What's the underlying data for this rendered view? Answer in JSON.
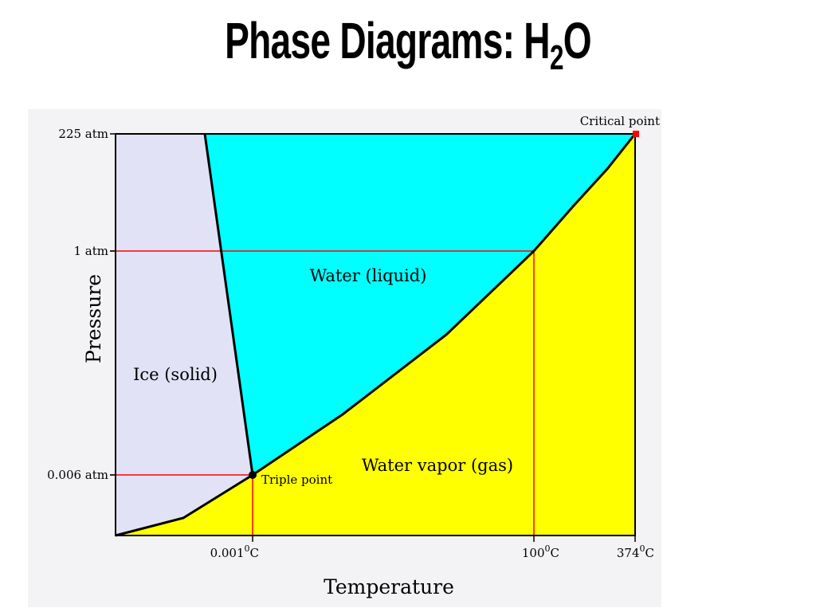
{
  "title": {
    "main": "Phase Diagrams: H",
    "subscript": "2",
    "suffix": "O"
  },
  "axes": {
    "y_label": "Pressure",
    "x_label": "Temperature",
    "y_ticks": [
      "225 atm",
      "1 atm",
      "0.006 atm"
    ],
    "x_ticks": [
      {
        "num": "0.001",
        "deg": "0",
        "unit": "C"
      },
      {
        "num": "100",
        "deg": "0",
        "unit": "C"
      },
      {
        "num": "374",
        "deg": "0",
        "unit": "C"
      }
    ]
  },
  "regions": {
    "solid": "Ice (solid)",
    "liquid": "Water (liquid)",
    "gas": "Water vapor (gas)"
  },
  "points": {
    "triple": "Triple point",
    "critical": "Critical point"
  },
  "colors": {
    "solid": "#e2e2f6",
    "liquid": "#00ffff",
    "gas": "#ffff00",
    "reference_lines": "#ff0000",
    "critical_point": "#ff0000",
    "curves": "#000000"
  }
}
